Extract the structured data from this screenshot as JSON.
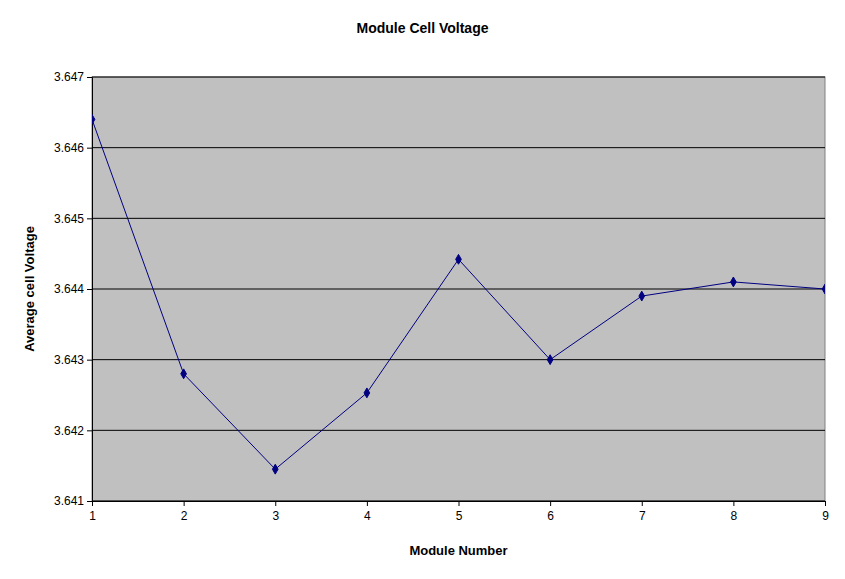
{
  "chart_data": {
    "type": "line",
    "title": "Module Cell Voltage",
    "x_label": "Module Number",
    "y_label": "Average cell Voltage",
    "x": [
      1,
      2,
      3,
      4,
      5,
      6,
      7,
      8,
      9
    ],
    "values": [
      3.6464,
      3.6428,
      3.64145,
      3.64253,
      3.64442,
      3.643,
      3.6439,
      3.6441,
      3.644
    ],
    "color": "#000080",
    "marker": "diamond",
    "line_style": "solid",
    "xlim": [
      1,
      9
    ],
    "xticks": [
      1,
      2,
      3,
      4,
      5,
      6,
      7,
      8,
      9
    ],
    "ylim": [
      3.641,
      3.647
    ],
    "yticks": [
      3.641,
      3.642,
      3.643,
      3.644,
      3.645,
      3.646,
      3.647
    ],
    "grid": "y"
  }
}
